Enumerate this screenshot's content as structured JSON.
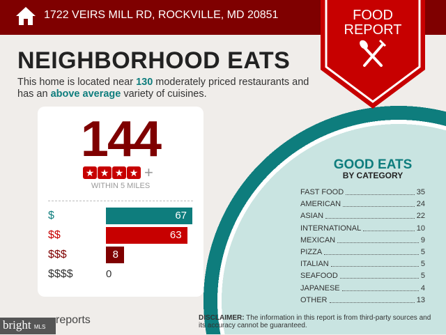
{
  "header": {
    "address": "1722 VEIRS MILL RD, ROCKVILLE, MD 20851",
    "badge_line1": "FOOD",
    "badge_line2": "REPORT"
  },
  "title": "NEIGHBORHOOD EATS",
  "subtitle": {
    "p1": "This home is located near ",
    "count": "130",
    "p2": " moderately priced restaurants and has an ",
    "variety": "above average",
    "p3": " variety of cuisines."
  },
  "card": {
    "total": "144",
    "rating_stars": 4,
    "rating_suffix": "+",
    "within": "WITHIN 5 MILES",
    "prices": [
      {
        "label": "$",
        "value": 67,
        "color": "#0e7d7d"
      },
      {
        "label": "$$",
        "value": 63,
        "color": "#c70000"
      },
      {
        "label": "$$$",
        "value": 8,
        "color": "#7f0000"
      },
      {
        "label": "$$$$",
        "value": 0,
        "color": "#333333"
      }
    ]
  },
  "good_eats": {
    "title": "GOOD EATS",
    "subtitle": "BY CATEGORY",
    "categories": [
      {
        "name": "FAST FOOD",
        "count": "35"
      },
      {
        "name": "AMERICAN",
        "count": "24"
      },
      {
        "name": "ASIAN",
        "count": "22"
      },
      {
        "name": "INTERNATIONAL",
        "count": "10"
      },
      {
        "name": "MEXICAN",
        "count": "9"
      },
      {
        "name": "PIZZA",
        "count": "5"
      },
      {
        "name": "ITALIAN",
        "count": "5"
      },
      {
        "name": "SEAFOOD",
        "count": "5"
      },
      {
        "name": "JAPANESE",
        "count": "4"
      },
      {
        "name": "OTHER",
        "count": "13"
      }
    ]
  },
  "footer": {
    "disclaimer_label": "DISCLAIMER:",
    "disclaimer_text": " The information in this report is from third-party sources and its accuracy cannot be guaranteed.",
    "brand": "bright",
    "brand_suffix": "MLS",
    "reports": "reports"
  },
  "colors": {
    "header": "#7f0000",
    "accent": "#0e7d7d",
    "red": "#c70000"
  }
}
